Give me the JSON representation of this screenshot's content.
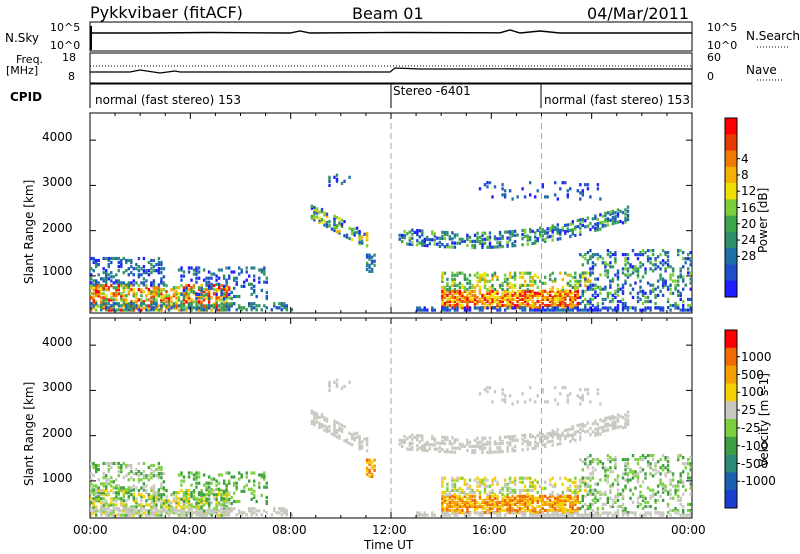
{
  "header": {
    "title": "Pykkvibaer (fitACF)",
    "beam": "Beam 01",
    "date": "04/Mar/2011"
  },
  "top_panels": {
    "nsky": {
      "label": "N.Sky",
      "left_ticks": [
        "10^5",
        "10^0"
      ],
      "right_ticks": [
        "10^5",
        "10^0"
      ],
      "right_label": "N.Search"
    },
    "freq": {
      "label_line1": "Freq.",
      "label_line2": "[MHz]",
      "left_ticks": [
        "18",
        "8"
      ],
      "right_ticks": [
        "60",
        "0"
      ],
      "right_label": "Nave"
    },
    "cpid": {
      "label": "CPID",
      "segments": [
        {
          "label": "normal (fast stereo) 153",
          "start_hour": 0
        },
        {
          "label": "Stereo -6401",
          "start_hour": 12
        },
        {
          "label": "normal (fast stereo) 153",
          "start_hour": 18
        }
      ]
    }
  },
  "chart_data": [
    {
      "type": "heatmap",
      "name": "power",
      "ylabel": "Slant Range [km]",
      "xlim": [
        0,
        24
      ],
      "ylim": [
        180,
        4600
      ],
      "yticks": [
        "1000",
        "2000",
        "3000",
        "4000"
      ],
      "colorbar": {
        "label": "Power [dB]",
        "ticks": [
          "4",
          "8",
          "12",
          "16",
          "20",
          "24",
          "28"
        ],
        "colors": [
          "#1f1fff",
          "#1d4fc8",
          "#1e6fa8",
          "#2f8f6a",
          "#3aa84a",
          "#7ccf3a",
          "#f0e000",
          "#f5b000",
          "#f07a00",
          "#e83a00",
          "#ff0000"
        ]
      },
      "vertical_markers": [
        12,
        18
      ]
    },
    {
      "type": "heatmap",
      "name": "velocity",
      "xlabel": "Time UT",
      "ylabel": "Slant Range [km]",
      "xlim": [
        0,
        24
      ],
      "ylim": [
        180,
        4600
      ],
      "xticks": [
        "00:00",
        "04:00",
        "08:00",
        "12:00",
        "16:00",
        "20:00",
        "00:00"
      ],
      "yticks": [
        "1000",
        "2000",
        "3000",
        "4000"
      ],
      "colorbar": {
        "label": "Velocity [m s-1]",
        "ticks": [
          "1000",
          "500",
          "100",
          "25",
          "-25",
          "-100",
          "-500",
          "-1000"
        ],
        "colors": [
          "#1a3fd0",
          "#1c5fb0",
          "#2a8a7a",
          "#3da040",
          "#7cd040",
          "#c8c8c0",
          "#f5d000",
          "#f5a000",
          "#f06a00",
          "#ff0000"
        ]
      },
      "vertical_markers": [
        12,
        18
      ]
    }
  ]
}
